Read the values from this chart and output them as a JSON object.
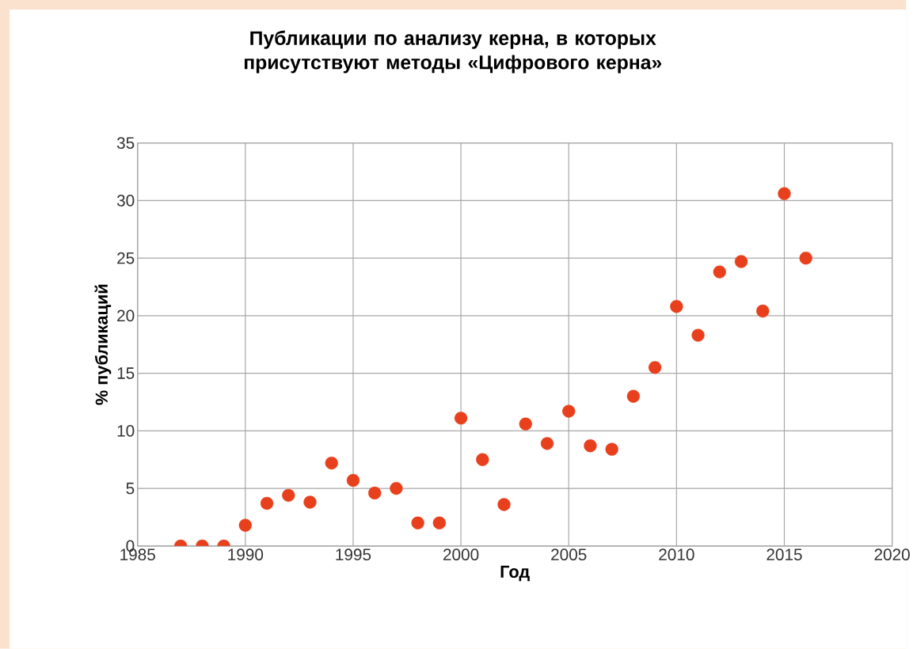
{
  "chart_data": {
    "type": "scatter",
    "title": "Публикации по анализу керна, в которых присутствуют методы «Цифрового керна»",
    "xlabel": "Год",
    "ylabel": "% публикаций",
    "x": [
      1987,
      1988,
      1989,
      1990,
      1991,
      1992,
      1993,
      1994,
      1995,
      1996,
      1997,
      1998,
      1999,
      2000,
      2001,
      2002,
      2003,
      2004,
      2005,
      2006,
      2007,
      2008,
      2009,
      2010,
      2011,
      2012,
      2013,
      2014,
      2015,
      2016
    ],
    "values": [
      0,
      0,
      0,
      1.8,
      3.7,
      4.4,
      3.8,
      7.2,
      5.7,
      4.6,
      5.0,
      2.0,
      2.0,
      11.1,
      7.5,
      3.6,
      10.6,
      8.9,
      11.7,
      8.7,
      8.4,
      13.0,
      15.5,
      20.8,
      18.3,
      23.8,
      24.7,
      20.4,
      30.6,
      25.0
    ],
    "color": "#e8401c",
    "marker": "circle",
    "grid": true,
    "xlim": [
      1985,
      2020
    ],
    "xticks": [
      1985,
      1990,
      1995,
      2000,
      2005,
      2010,
      2015,
      2020
    ],
    "ylim": [
      0,
      35
    ],
    "yticks": [
      0,
      5,
      10,
      15,
      20,
      25,
      30,
      35
    ]
  }
}
